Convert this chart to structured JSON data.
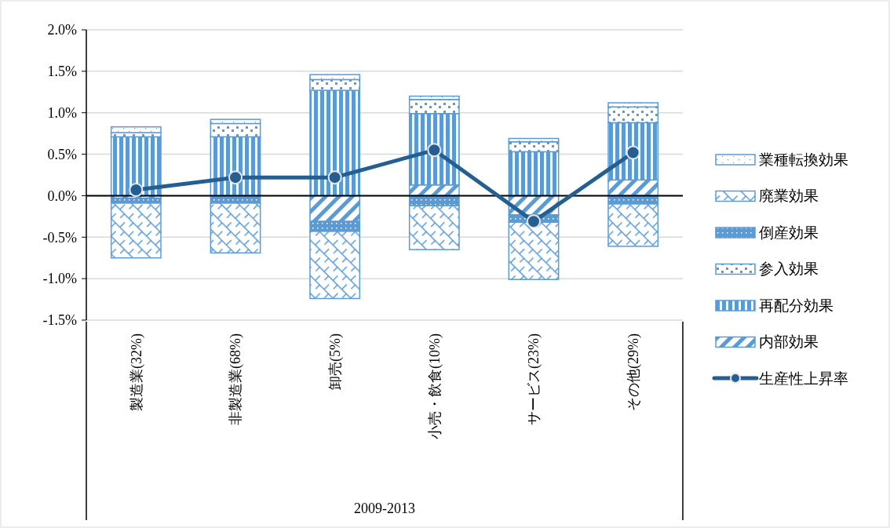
{
  "chart_data": {
    "type": "bar",
    "stacked": true,
    "xlabel": "2009-2013",
    "categories": [
      "製造業(32%)",
      "非製造業(68%)",
      "卸売(5%)",
      "小売・飲食(10%)",
      "サービス(23%)",
      "その他(29%)"
    ],
    "series": [
      {
        "name": "内部効果",
        "color": "#5b9bd5",
        "values": [
          -0.03,
          0,
          -0.31,
          0.13,
          -0.23,
          0.19
        ]
      },
      {
        "name": "再配分効果",
        "color": "#5b9bd5",
        "values": [
          0.71,
          0.71,
          1.27,
          0.86,
          0.53,
          0.69
        ]
      },
      {
        "name": "参入効果",
        "color": "#5b9bd5",
        "values": [
          0.05,
          0.16,
          0.13,
          0.17,
          0.12,
          0.19
        ]
      },
      {
        "name": "倒産効果",
        "color": "#5b9bd5",
        "values": [
          -0.06,
          -0.09,
          -0.12,
          -0.12,
          -0.09,
          -0.1
        ]
      },
      {
        "name": "廃業効果",
        "color": "#5b9bd5",
        "values": [
          -0.66,
          -0.6,
          -0.81,
          -0.53,
          -0.69,
          -0.51
        ]
      },
      {
        "name": "業種転換効果",
        "color": "#5b9bd5",
        "values": [
          0.07,
          0.05,
          0.06,
          0.04,
          0.04,
          0.05
        ]
      },
      {
        "name": "生産性上昇率",
        "type": "line",
        "color": "#255e91",
        "marker": "circle",
        "values": [
          0.07,
          0.22,
          0.22,
          0.55,
          -0.31,
          0.52
        ]
      }
    ],
    "ylim": [
      -1.5,
      2.0
    ],
    "yticks": [
      {
        "value": -1.5,
        "label": "-1.5%"
      },
      {
        "value": -1.0,
        "label": "-1.0%"
      },
      {
        "value": -0.5,
        "label": "-0.5%"
      },
      {
        "value": 0,
        "label": "0.0%"
      },
      {
        "value": 0.5,
        "label": "0.5%"
      },
      {
        "value": 1.0,
        "label": "1.0%"
      },
      {
        "value": 1.5,
        "label": "1.5%"
      },
      {
        "value": 2.0,
        "label": "2.0%"
      }
    ],
    "grid": "y",
    "legend": "right"
  }
}
